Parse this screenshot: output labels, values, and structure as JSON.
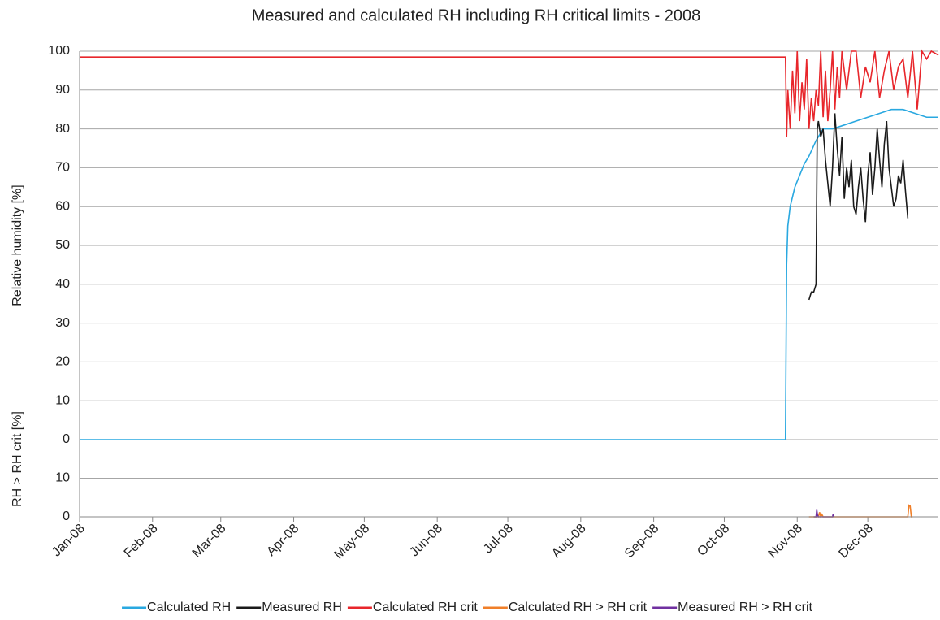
{
  "chart_data": [
    {
      "type": "line",
      "title": "Measured and calculated RH including RH critical limits - 2008",
      "y_label": "Relative humidity [%]",
      "ylim": [
        0,
        100
      ],
      "yticks": [
        0,
        10,
        20,
        30,
        40,
        50,
        60,
        70,
        80,
        90,
        100
      ],
      "grid": true,
      "series": [
        {
          "name": "Calculated RH",
          "color": "#29a8e0",
          "x": [
            0,
            300,
            300.5,
            301,
            302,
            304,
            306,
            308,
            310,
            313,
            316,
            320,
            325,
            330,
            335,
            340,
            345,
            350,
            355,
            360,
            365
          ],
          "values": [
            0,
            0,
            45,
            55,
            60,
            65,
            68,
            71,
            73,
            77,
            80,
            80,
            81,
            82,
            83,
            84,
            85,
            85,
            84,
            83,
            83
          ]
        },
        {
          "name": "Measured RH",
          "color": "#1a1a1a",
          "x": [
            310,
            311,
            312,
            313,
            313.5,
            314,
            315,
            316,
            317,
            318,
            319,
            320,
            321,
            322,
            323,
            324,
            325,
            326,
            327,
            328,
            329,
            330,
            331,
            332,
            333,
            334,
            335,
            336,
            337,
            338,
            339,
            340,
            341,
            342,
            343,
            344,
            345,
            346,
            347,
            348,
            349,
            350,
            351,
            352
          ],
          "values": [
            36,
            38,
            38,
            40,
            80,
            82,
            78,
            80,
            72,
            66,
            60,
            70,
            84,
            75,
            68,
            78,
            62,
            70,
            65,
            72,
            60,
            58,
            65,
            70,
            62,
            56,
            68,
            74,
            63,
            70,
            80,
            72,
            65,
            76,
            82,
            70,
            65,
            60,
            62,
            68,
            66,
            72,
            64,
            57
          ]
        },
        {
          "name": "Calculated RH crit",
          "color": "#e8262b",
          "x": [
            0,
            300,
            300.5,
            301,
            302,
            303,
            304,
            305,
            306,
            307,
            308,
            309,
            310,
            311,
            312,
            313,
            314,
            315,
            316,
            317,
            318,
            319,
            320,
            321,
            322,
            323,
            324,
            326,
            328,
            330,
            332,
            334,
            336,
            338,
            340,
            342,
            344,
            346,
            348,
            350,
            352,
            354,
            356,
            358,
            360,
            362,
            365
          ],
          "values": [
            98.5,
            98.5,
            78,
            90,
            80,
            95,
            84,
            100,
            82,
            92,
            85,
            98,
            80,
            88,
            82,
            90,
            86,
            100,
            83,
            95,
            82,
            90,
            100,
            85,
            96,
            88,
            100,
            90,
            100,
            100,
            88,
            96,
            92,
            100,
            88,
            95,
            100,
            90,
            96,
            98,
            88,
            100,
            85,
            100,
            98,
            100,
            99
          ]
        }
      ]
    },
    {
      "type": "line",
      "y_label": "RH > RH crit [%]",
      "ylim": [
        0,
        20
      ],
      "yticks": [
        0,
        10
      ],
      "grid": true,
      "xlim": [
        0,
        365
      ],
      "xticks": [
        {
          "value": 0,
          "label": "Jan-08"
        },
        {
          "value": 31,
          "label": "Feb-08"
        },
        {
          "value": 60,
          "label": "Mar-08"
        },
        {
          "value": 91,
          "label": "Apr-08"
        },
        {
          "value": 121,
          "label": "May-08"
        },
        {
          "value": 152,
          "label": "Jun-08"
        },
        {
          "value": 182,
          "label": "Jul-08"
        },
        {
          "value": 213,
          "label": "Aug-08"
        },
        {
          "value": 244,
          "label": "Sep-08"
        },
        {
          "value": 274,
          "label": "Oct-08"
        },
        {
          "value": 305,
          "label": "Nov-08"
        },
        {
          "value": 335,
          "label": "Dec-08"
        }
      ],
      "series": [
        {
          "name": "Calculated RH > RH crit",
          "color": "#f07f29",
          "x": [
            310,
            314,
            314.5,
            315,
            315.5,
            316,
            352,
            352.5,
            353,
            353.5,
            354
          ],
          "values": [
            0,
            0,
            1.2,
            0,
            0.6,
            0,
            0,
            3,
            2.8,
            0,
            0
          ]
        },
        {
          "name": "Measured RH > RH crit",
          "color": "#7030a0",
          "x": [
            312,
            313,
            313.3,
            313.6,
            314,
            320,
            320.3,
            320.6
          ],
          "values": [
            0,
            0,
            1.8,
            0.5,
            0,
            0,
            0.8,
            0
          ]
        }
      ]
    }
  ]
}
